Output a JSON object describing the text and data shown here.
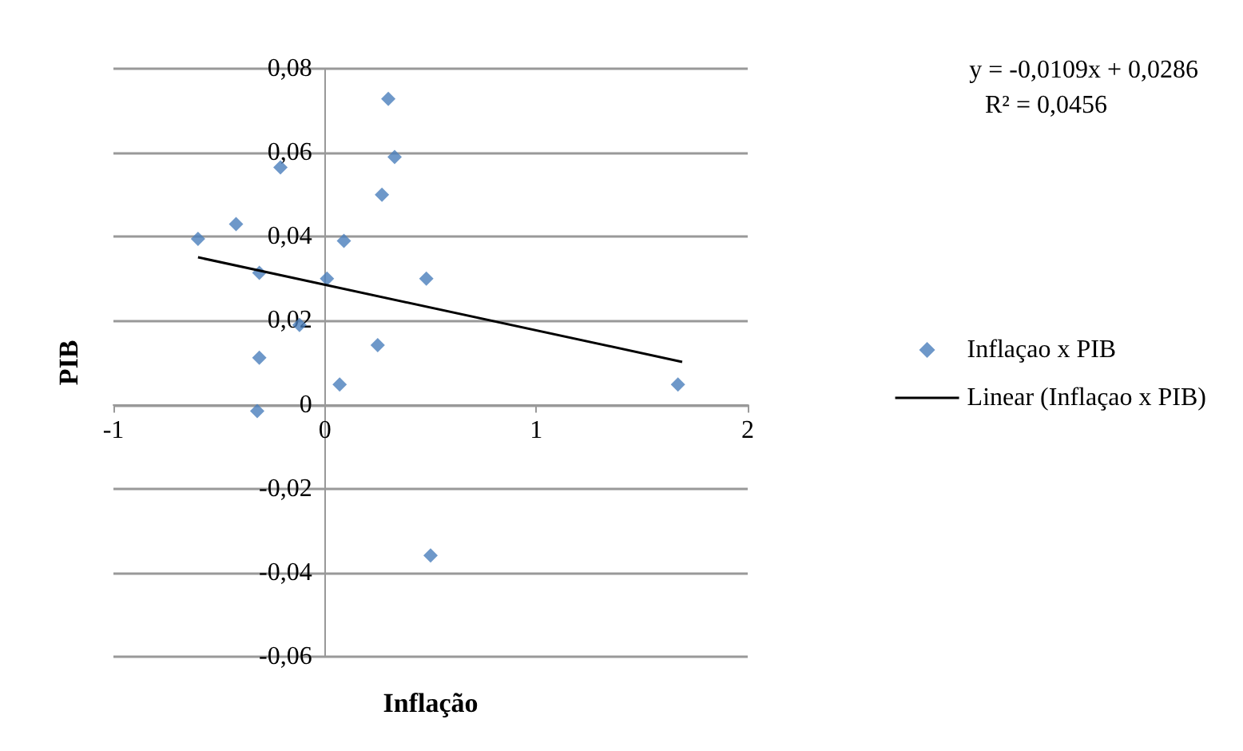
{
  "chart_data": {
    "type": "scatter",
    "xlabel": "Inflação",
    "ylabel": "PIB",
    "xlim": [
      -1,
      2
    ],
    "xticks": [
      -1,
      0,
      1,
      2
    ],
    "ylim": [
      -0.06,
      0.08
    ],
    "yticks": [
      {
        "value": -0.06,
        "label": "-0,06"
      },
      {
        "value": -0.04,
        "label": "-0,04"
      },
      {
        "value": -0.02,
        "label": "-0,02"
      },
      {
        "value": 0,
        "label": "0"
      },
      {
        "value": 0.02,
        "label": "0,02"
      },
      {
        "value": 0.04,
        "label": "0,04"
      },
      {
        "value": 0.06,
        "label": "0,06"
      },
      {
        "value": 0.08,
        "label": "0,08"
      }
    ],
    "grid": "y",
    "legend": "right",
    "marker": "diamond",
    "annotations": [
      "y = -0,0109x + 0,0286",
      "R² = 0,0456"
    ],
    "series": [
      {
        "name": "Inflaçao x PIB",
        "type": "scatter",
        "color": "#4a7ebb",
        "x": [
          -0.6,
          -0.42,
          -0.21,
          -0.31,
          -0.31,
          -0.32,
          -0.12,
          0.01,
          0.09,
          0.07,
          0.3,
          0.33,
          0.27,
          0.25,
          0.48,
          1.67,
          0.5
        ],
        "values": [
          0.0395,
          0.043,
          0.0565,
          0.0314,
          0.0112,
          -0.0015,
          0.019,
          0.03,
          0.039,
          0.0048,
          0.0728,
          0.059,
          0.05,
          0.0142,
          0.03,
          0.0048,
          -0.0359
        ]
      },
      {
        "name": "Linear (Inflaçao x PIB)",
        "type": "line",
        "color": "#000000",
        "marker": "none",
        "line_style": "solid",
        "x": [
          -0.6,
          1.69
        ],
        "values": [
          0.0351,
          0.0102
        ]
      }
    ]
  }
}
